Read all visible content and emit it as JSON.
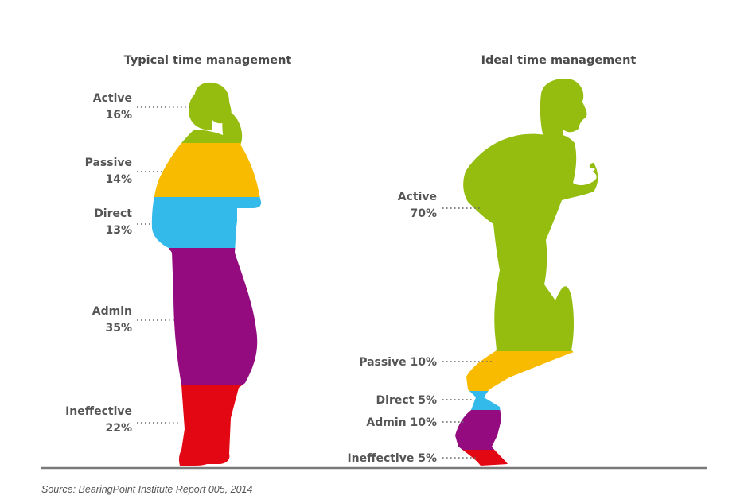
{
  "source": "Source: BearingPoint Institute Report 005, 2014",
  "colors": {
    "Active": "#95bd10",
    "Passive": "#f8bb00",
    "Direct": "#34baea",
    "Admin": "#930b7e",
    "Ineffective": "#e30613"
  },
  "chart_data": [
    {
      "type": "bar",
      "title": "Typical time management",
      "categories": [
        "Active",
        "Passive",
        "Direct",
        "Admin",
        "Ineffective"
      ],
      "values": [
        16,
        14,
        13,
        35,
        22
      ],
      "unit": "%",
      "labels": [
        {
          "name": "Active",
          "value": "16%"
        },
        {
          "name": "Passive",
          "value": "14%"
        },
        {
          "name": "Direct",
          "value": "13%"
        },
        {
          "name": "Admin",
          "value": "35%"
        },
        {
          "name": "Ineffective",
          "value": "22%"
        }
      ]
    },
    {
      "type": "bar",
      "title": "Ideal time management",
      "categories": [
        "Active",
        "Passive",
        "Direct",
        "Admin",
        "Ineffective"
      ],
      "values": [
        70,
        10,
        5,
        10,
        5
      ],
      "unit": "%",
      "labels": [
        {
          "name": "Active",
          "value": "70%"
        },
        {
          "name": "Passive",
          "text": "Passive 10%"
        },
        {
          "name": "Direct",
          "text": "Direct 5%"
        },
        {
          "name": "Admin",
          "text": "Admin 10%"
        },
        {
          "name": "Ineffective",
          "text": "Ineffective 5%"
        }
      ]
    }
  ]
}
